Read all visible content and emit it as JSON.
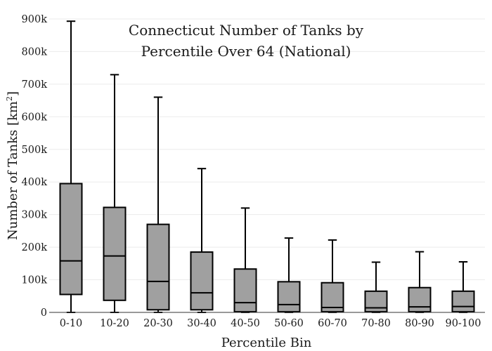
{
  "chart_data": {
    "type": "box",
    "title_lines": [
      "Connecticut Number of Tanks by",
      "Percentile Over 64 (National)"
    ],
    "xlabel": "Percentile Bin",
    "ylabel": "Number of Tanks  [km",
    "ylabel_sup": "2",
    "ylabel_close": "]",
    "ylim": [
      0,
      915000
    ],
    "yticks": [
      0,
      100000,
      200000,
      300000,
      400000,
      500000,
      600000,
      700000,
      800000,
      900000
    ],
    "ytick_labels": [
      "0",
      "100k",
      "200k",
      "300k",
      "400k",
      "500k",
      "600k",
      "700k",
      "800k",
      "900k"
    ],
    "grid": true,
    "box_fill": "#a0a0a0",
    "line_color": "#000000",
    "categories": [
      "0-10",
      "10-20",
      "20-30",
      "30-40",
      "40-50",
      "50-60",
      "60-70",
      "70-80",
      "80-90",
      "90-100"
    ],
    "boxes": [
      {
        "min": 0,
        "q1": 55000,
        "median": 158000,
        "q3": 395000,
        "max": 893000
      },
      {
        "min": 0,
        "q1": 37000,
        "median": 173000,
        "q3": 322000,
        "max": 729000
      },
      {
        "min": 0,
        "q1": 8000,
        "median": 95000,
        "q3": 270000,
        "max": 660000
      },
      {
        "min": 0,
        "q1": 8000,
        "median": 60000,
        "q3": 185000,
        "max": 441000
      },
      {
        "min": 0,
        "q1": 2000,
        "median": 30000,
        "q3": 133000,
        "max": 320000
      },
      {
        "min": 0,
        "q1": 2000,
        "median": 24000,
        "q3": 94000,
        "max": 228000
      },
      {
        "min": 0,
        "q1": 2000,
        "median": 15000,
        "q3": 91000,
        "max": 222000
      },
      {
        "min": 0,
        "q1": 2000,
        "median": 14000,
        "q3": 65000,
        "max": 154000
      },
      {
        "min": 0,
        "q1": 2000,
        "median": 17000,
        "q3": 76000,
        "max": 186000
      },
      {
        "min": 0,
        "q1": 2000,
        "median": 18000,
        "q3": 65000,
        "max": 155000
      }
    ]
  }
}
